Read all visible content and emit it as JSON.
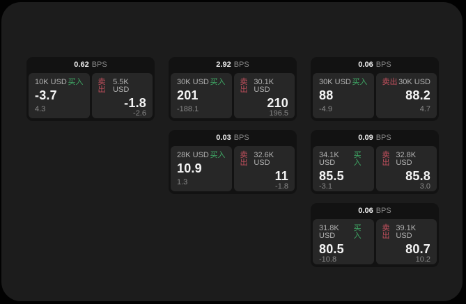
{
  "labels": {
    "bps": "BPS",
    "buy": "买入",
    "sell": "卖出"
  },
  "colors": {
    "buy_accent": "#3fa865",
    "sell_accent": "#c4505e",
    "page_background": "#1c1c1c",
    "card_background": "#121212",
    "tile_background": "#272727"
  },
  "cards": [
    {
      "bps": "0.62",
      "buy": {
        "size": "10K USD",
        "price": "-3.7",
        "delta": "4.3"
      },
      "sell": {
        "size": "5.5K USD",
        "price": "-1.8",
        "delta": "-2.6"
      }
    },
    {
      "bps": "2.92",
      "buy": {
        "size": "30K USD",
        "price": "201",
        "delta": "-188.1"
      },
      "sell": {
        "size": "30.1K USD",
        "price": "210",
        "delta": "196.5"
      }
    },
    {
      "bps": "0.06",
      "buy": {
        "size": "30K USD",
        "price": "88",
        "delta": "-4.9"
      },
      "sell": {
        "size": "30K USD",
        "price": "88.2",
        "delta": "4.7"
      }
    },
    {
      "bps": "0.03",
      "buy": {
        "size": "28K USD",
        "price": "10.9",
        "delta": "1.3"
      },
      "sell": {
        "size": "32.6K USD",
        "price": "11",
        "delta": "-1.8"
      }
    },
    {
      "bps": "0.09",
      "buy": {
        "size": "34.1K USD",
        "price": "85.5",
        "delta": "-3.1"
      },
      "sell": {
        "size": "32.8K USD",
        "price": "85.8",
        "delta": "3.0"
      }
    },
    {
      "bps": "0.06",
      "buy": {
        "size": "31.8K USD",
        "price": "80.5",
        "delta": "-10.8"
      },
      "sell": {
        "size": "39.1K USD",
        "price": "80.7",
        "delta": "10.2"
      }
    }
  ]
}
